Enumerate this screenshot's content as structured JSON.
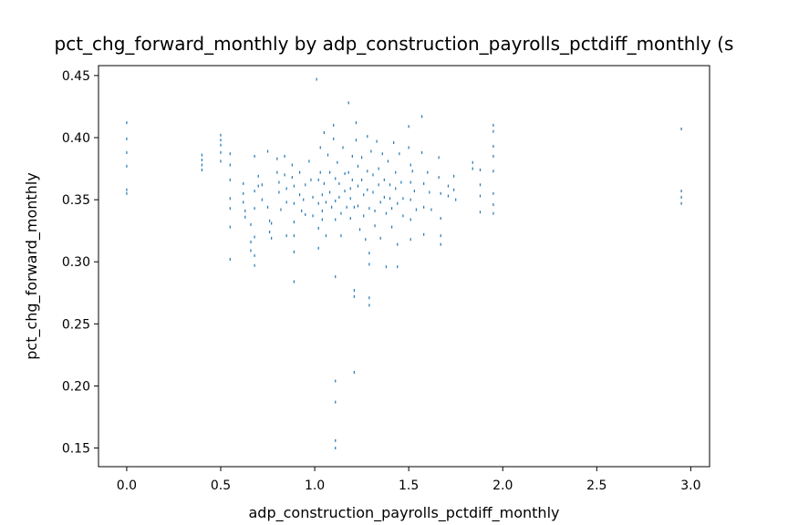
{
  "chart_data": {
    "type": "scatter",
    "title": "pct_chg_forward_monthly by adp_construction_payrolls_pctdiff_monthly (s",
    "xlabel": "adp_construction_payrolls_pctdiff_monthly",
    "ylabel": "pct_chg_forward_monthly",
    "xlim": [
      -0.15,
      3.1
    ],
    "ylim": [
      0.135,
      0.458
    ],
    "xticks": [
      "0.0",
      "0.5",
      "1.0",
      "1.5",
      "2.0",
      "2.5",
      "3.0"
    ],
    "yticks": [
      "0.15",
      "0.20",
      "0.25",
      "0.30",
      "0.35",
      "0.40",
      "0.45"
    ],
    "grid": false,
    "marker_color": "#1f77b4",
    "series": [
      {
        "points": [
          [
            0.0,
            0.412
          ],
          [
            0.0,
            0.399
          ],
          [
            0.0,
            0.388
          ],
          [
            0.0,
            0.377
          ],
          [
            0.0,
            0.358
          ],
          [
            0.0,
            0.355
          ],
          [
            0.4,
            0.386
          ],
          [
            0.4,
            0.382
          ],
          [
            0.4,
            0.378
          ],
          [
            0.4,
            0.374
          ],
          [
            0.5,
            0.402
          ],
          [
            0.5,
            0.398
          ],
          [
            0.5,
            0.394
          ],
          [
            0.5,
            0.388
          ],
          [
            0.5,
            0.381
          ],
          [
            0.55,
            0.387
          ],
          [
            0.55,
            0.378
          ],
          [
            0.55,
            0.366
          ],
          [
            0.55,
            0.351
          ],
          [
            0.55,
            0.343
          ],
          [
            0.55,
            0.328
          ],
          [
            0.55,
            0.302
          ],
          [
            0.62,
            0.363
          ],
          [
            0.62,
            0.355
          ],
          [
            0.62,
            0.348
          ],
          [
            0.63,
            0.341
          ],
          [
            0.63,
            0.336
          ],
          [
            0.66,
            0.33
          ],
          [
            0.66,
            0.316
          ],
          [
            0.66,
            0.309
          ],
          [
            0.68,
            0.385
          ],
          [
            0.68,
            0.357
          ],
          [
            0.68,
            0.343
          ],
          [
            0.68,
            0.32
          ],
          [
            0.68,
            0.305
          ],
          [
            0.68,
            0.297
          ],
          [
            0.7,
            0.369
          ],
          [
            0.7,
            0.361
          ],
          [
            0.72,
            0.35
          ],
          [
            0.72,
            0.362
          ],
          [
            0.75,
            0.389
          ],
          [
            0.75,
            0.344
          ],
          [
            0.76,
            0.333
          ],
          [
            0.76,
            0.324
          ],
          [
            0.77,
            0.331
          ],
          [
            0.77,
            0.319
          ],
          [
            0.8,
            0.383
          ],
          [
            0.8,
            0.372
          ],
          [
            0.81,
            0.364
          ],
          [
            0.81,
            0.356
          ],
          [
            0.82,
            0.342
          ],
          [
            0.84,
            0.385
          ],
          [
            0.84,
            0.37
          ],
          [
            0.85,
            0.359
          ],
          [
            0.85,
            0.348
          ],
          [
            0.85,
            0.321
          ],
          [
            0.88,
            0.378
          ],
          [
            0.88,
            0.368
          ],
          [
            0.89,
            0.361
          ],
          [
            0.89,
            0.347
          ],
          [
            0.89,
            0.332
          ],
          [
            0.89,
            0.321
          ],
          [
            0.89,
            0.308
          ],
          [
            0.89,
            0.284
          ],
          [
            0.92,
            0.372
          ],
          [
            0.92,
            0.354
          ],
          [
            0.93,
            0.341
          ],
          [
            0.94,
            0.35
          ],
          [
            0.95,
            0.362
          ],
          [
            0.95,
            0.338
          ],
          [
            0.97,
            0.381
          ],
          [
            0.98,
            0.366
          ],
          [
            0.99,
            0.352
          ],
          [
            0.99,
            0.337
          ],
          [
            1.01,
            0.447
          ],
          [
            1.02,
            0.366
          ],
          [
            1.02,
            0.347
          ],
          [
            1.02,
            0.327
          ],
          [
            1.02,
            0.311
          ],
          [
            1.03,
            0.392
          ],
          [
            1.03,
            0.372
          ],
          [
            1.04,
            0.354
          ],
          [
            1.04,
            0.341
          ],
          [
            1.04,
            0.334
          ],
          [
            1.05,
            0.404
          ],
          [
            1.05,
            0.363
          ],
          [
            1.06,
            0.348
          ],
          [
            1.06,
            0.321
          ],
          [
            1.07,
            0.386
          ],
          [
            1.08,
            0.372
          ],
          [
            1.08,
            0.356
          ],
          [
            1.09,
            0.344
          ],
          [
            1.1,
            0.41
          ],
          [
            1.1,
            0.399
          ],
          [
            1.11,
            0.367
          ],
          [
            1.11,
            0.349
          ],
          [
            1.11,
            0.334
          ],
          [
            1.11,
            0.288
          ],
          [
            1.11,
            0.204
          ],
          [
            1.11,
            0.187
          ],
          [
            1.11,
            0.156
          ],
          [
            1.11,
            0.15
          ],
          [
            1.12,
            0.38
          ],
          [
            1.13,
            0.363
          ],
          [
            1.13,
            0.352
          ],
          [
            1.14,
            0.339
          ],
          [
            1.14,
            0.321
          ],
          [
            1.15,
            0.392
          ],
          [
            1.16,
            0.371
          ],
          [
            1.16,
            0.357
          ],
          [
            1.17,
            0.344
          ],
          [
            1.18,
            0.428
          ],
          [
            1.18,
            0.372
          ],
          [
            1.19,
            0.359
          ],
          [
            1.19,
            0.351
          ],
          [
            1.19,
            0.335
          ],
          [
            1.2,
            0.385
          ],
          [
            1.2,
            0.366
          ],
          [
            1.21,
            0.344
          ],
          [
            1.21,
            0.277
          ],
          [
            1.21,
            0.272
          ],
          [
            1.21,
            0.211
          ],
          [
            1.22,
            0.412
          ],
          [
            1.22,
            0.398
          ],
          [
            1.23,
            0.377
          ],
          [
            1.23,
            0.361
          ],
          [
            1.23,
            0.345
          ],
          [
            1.24,
            0.326
          ],
          [
            1.25,
            0.384
          ],
          [
            1.25,
            0.366
          ],
          [
            1.26,
            0.354
          ],
          [
            1.26,
            0.337
          ],
          [
            1.27,
            0.318
          ],
          [
            1.28,
            0.401
          ],
          [
            1.28,
            0.373
          ],
          [
            1.28,
            0.358
          ],
          [
            1.29,
            0.343
          ],
          [
            1.29,
            0.307
          ],
          [
            1.29,
            0.298
          ],
          [
            1.29,
            0.271
          ],
          [
            1.29,
            0.265
          ],
          [
            1.3,
            0.389
          ],
          [
            1.31,
            0.37
          ],
          [
            1.31,
            0.356
          ],
          [
            1.32,
            0.341
          ],
          [
            1.32,
            0.329
          ],
          [
            1.33,
            0.397
          ],
          [
            1.34,
            0.375
          ],
          [
            1.34,
            0.362
          ],
          [
            1.35,
            0.348
          ],
          [
            1.35,
            0.319
          ],
          [
            1.36,
            0.387
          ],
          [
            1.37,
            0.366
          ],
          [
            1.37,
            0.352
          ],
          [
            1.38,
            0.339
          ],
          [
            1.38,
            0.296
          ],
          [
            1.39,
            0.381
          ],
          [
            1.4,
            0.362
          ],
          [
            1.4,
            0.351
          ],
          [
            1.41,
            0.343
          ],
          [
            1.41,
            0.328
          ],
          [
            1.42,
            0.396
          ],
          [
            1.43,
            0.372
          ],
          [
            1.43,
            0.359
          ],
          [
            1.44,
            0.347
          ],
          [
            1.44,
            0.314
          ],
          [
            1.44,
            0.296
          ],
          [
            1.45,
            0.387
          ],
          [
            1.46,
            0.364
          ],
          [
            1.47,
            0.351
          ],
          [
            1.47,
            0.337
          ],
          [
            1.5,
            0.409
          ],
          [
            1.5,
            0.392
          ],
          [
            1.51,
            0.378
          ],
          [
            1.51,
            0.364
          ],
          [
            1.51,
            0.35
          ],
          [
            1.51,
            0.334
          ],
          [
            1.51,
            0.318
          ],
          [
            1.52,
            0.373
          ],
          [
            1.53,
            0.357
          ],
          [
            1.54,
            0.342
          ],
          [
            1.57,
            0.417
          ],
          [
            1.57,
            0.388
          ],
          [
            1.58,
            0.363
          ],
          [
            1.58,
            0.344
          ],
          [
            1.58,
            0.322
          ],
          [
            1.6,
            0.372
          ],
          [
            1.61,
            0.356
          ],
          [
            1.62,
            0.342
          ],
          [
            1.66,
            0.384
          ],
          [
            1.66,
            0.368
          ],
          [
            1.67,
            0.355
          ],
          [
            1.67,
            0.335
          ],
          [
            1.67,
            0.321
          ],
          [
            1.67,
            0.314
          ],
          [
            1.71,
            0.361
          ],
          [
            1.71,
            0.353
          ],
          [
            1.74,
            0.369
          ],
          [
            1.74,
            0.358
          ],
          [
            1.75,
            0.35
          ],
          [
            1.84,
            0.38
          ],
          [
            1.84,
            0.375
          ],
          [
            1.88,
            0.374
          ],
          [
            1.88,
            0.362
          ],
          [
            1.88,
            0.353
          ],
          [
            1.88,
            0.34
          ],
          [
            1.95,
            0.41
          ],
          [
            1.95,
            0.405
          ],
          [
            1.95,
            0.393
          ],
          [
            1.95,
            0.385
          ],
          [
            1.95,
            0.373
          ],
          [
            1.95,
            0.355
          ],
          [
            1.95,
            0.346
          ],
          [
            1.95,
            0.339
          ],
          [
            2.95,
            0.407
          ],
          [
            2.95,
            0.357
          ],
          [
            2.95,
            0.352
          ],
          [
            2.95,
            0.347
          ]
        ]
      }
    ]
  }
}
